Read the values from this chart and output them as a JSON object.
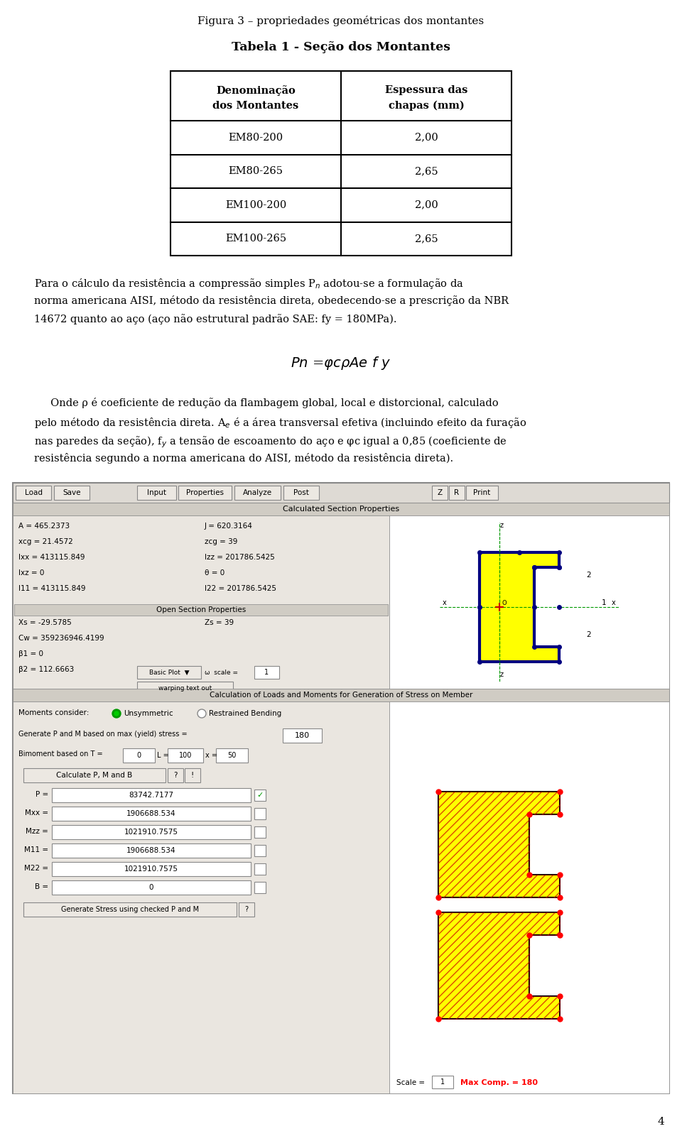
{
  "fig_title": "Figura 3 – propriedades geométricas dos montantes",
  "table_title": "Tabela 1 - Seção dos Montantes",
  "table_headers_col1": [
    "Denominação",
    "dos Montantes"
  ],
  "table_headers_col2": [
    "Espessura das",
    "chapas (mm)"
  ],
  "table_rows": [
    [
      "EM80-200",
      "2,00"
    ],
    [
      "EM80-265",
      "2,65"
    ],
    [
      "EM100-200",
      "2,00"
    ],
    [
      "EM100-265",
      "2,65"
    ]
  ],
  "page_number": "4",
  "bg_color": "#ffffff",
  "text_color": "#000000",
  "screenshot_bg": "#ccc8c0",
  "toolbar_bg": "#dedad4",
  "button_color": "#ece8e2",
  "input_color": "#ffffff",
  "section_props": {
    "A": "465.2373",
    "J": "620.3164",
    "xcg": "21.4572",
    "zcg": "39",
    "Ixx": "413115.849",
    "Izz": "201786.5425",
    "Ixz": "0",
    "theta": "0",
    "I11": "413115.849",
    "I22": "201786.5425",
    "Xs": "-29.5785",
    "Zs": "39",
    "Cw": "359236946.4199",
    "beta1": "0",
    "beta2": "112.6663",
    "P": "83742.7177",
    "Mxx": "1906688.534",
    "Mzz": "1021910.7575",
    "M11": "1906688.534",
    "M22": "1021910.7575",
    "B": "0",
    "yield_stress": "180",
    "T": "0",
    "L": "100",
    "x_val": "50",
    "scale_val": "1",
    "max_comp": "180"
  }
}
